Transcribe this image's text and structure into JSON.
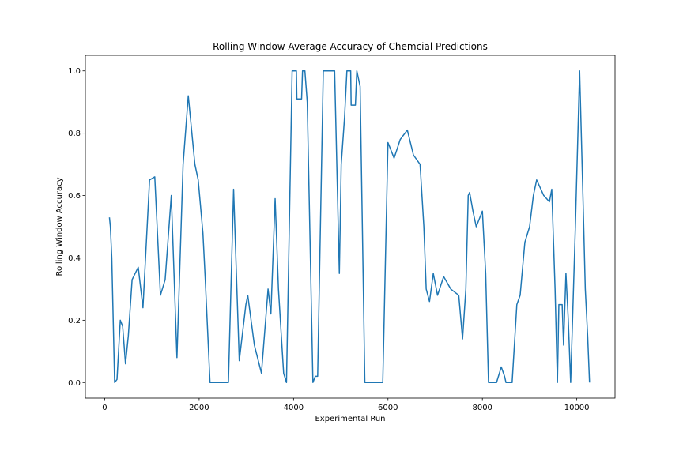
{
  "chart_data": {
    "type": "line",
    "title": "Rolling Window Average Accuracy of Chemcial Predictions",
    "x_label": "Experimental Run",
    "y_label": "Rolling Window Accuracy",
    "xlim": [
      -410,
      10810
    ],
    "ylim": [
      -0.05,
      1.05
    ],
    "xticks": [
      0,
      2000,
      4000,
      6000,
      8000,
      10000
    ],
    "yticks": [
      {
        "value": 0,
        "label": "0.0"
      },
      0.2,
      0.4,
      0.6,
      0.8,
      {
        "value": 1,
        "label": "1.0"
      }
    ],
    "series": [
      {
        "color": "#1f77b4",
        "x": [
          100,
          120,
          150,
          210,
          260,
          330,
          380,
          440,
          500,
          580,
          710,
          810,
          950,
          1060,
          1180,
          1280,
          1410,
          1530,
          1660,
          1770,
          1910,
          1980,
          2080,
          2130,
          2230,
          2620,
          2730,
          2850,
          2990,
          3030,
          3170,
          3320,
          3460,
          3520,
          3610,
          3680,
          3790,
          3850,
          3970,
          4060,
          4070,
          4170,
          4190,
          4240,
          4290,
          4410,
          4460,
          4510,
          4630,
          4870,
          4970,
          5010,
          5080,
          5130,
          5210,
          5220,
          5310,
          5340,
          5410,
          5510,
          5890,
          6000,
          6130,
          6260,
          6410,
          6540,
          6680,
          6760,
          6810,
          6880,
          6960,
          7050,
          7180,
          7330,
          7500,
          7580,
          7650,
          7700,
          7730,
          7800,
          7870,
          8000,
          8070,
          8130,
          8300,
          8400,
          8470,
          8500,
          8630,
          8730,
          8800,
          8900,
          9000,
          9080,
          9150,
          9300,
          9420,
          9470,
          9540,
          9590,
          9620,
          9690,
          9720,
          9770,
          9820,
          9870,
          9970,
          10060,
          10130,
          10180,
          10230,
          10270
        ],
        "values": [
          0.53,
          0.5,
          0.4,
          0.0,
          0.01,
          0.2,
          0.18,
          0.06,
          0.15,
          0.33,
          0.37,
          0.24,
          0.65,
          0.66,
          0.28,
          0.33,
          0.6,
          0.08,
          0.7,
          0.92,
          0.7,
          0.65,
          0.48,
          0.33,
          0.0,
          0.0,
          0.62,
          0.07,
          0.25,
          0.28,
          0.12,
          0.03,
          0.3,
          0.22,
          0.59,
          0.3,
          0.03,
          0.0,
          1.0,
          1.0,
          0.91,
          0.91,
          1.0,
          1.0,
          0.9,
          0.0,
          0.02,
          0.02,
          1.0,
          1.0,
          0.35,
          0.7,
          0.85,
          1.0,
          1.0,
          0.89,
          0.89,
          1.0,
          0.95,
          0.0,
          0.0,
          0.77,
          0.72,
          0.78,
          0.81,
          0.73,
          0.7,
          0.5,
          0.3,
          0.26,
          0.35,
          0.28,
          0.34,
          0.3,
          0.28,
          0.14,
          0.3,
          0.6,
          0.61,
          0.55,
          0.5,
          0.55,
          0.35,
          0.0,
          0.0,
          0.05,
          0.02,
          0.0,
          0.0,
          0.25,
          0.28,
          0.45,
          0.5,
          0.6,
          0.65,
          0.6,
          0.58,
          0.62,
          0.3,
          0.0,
          0.25,
          0.25,
          0.12,
          0.35,
          0.2,
          0.0,
          0.5,
          1.0,
          0.6,
          0.3,
          0.15,
          0.0
        ]
      }
    ]
  }
}
